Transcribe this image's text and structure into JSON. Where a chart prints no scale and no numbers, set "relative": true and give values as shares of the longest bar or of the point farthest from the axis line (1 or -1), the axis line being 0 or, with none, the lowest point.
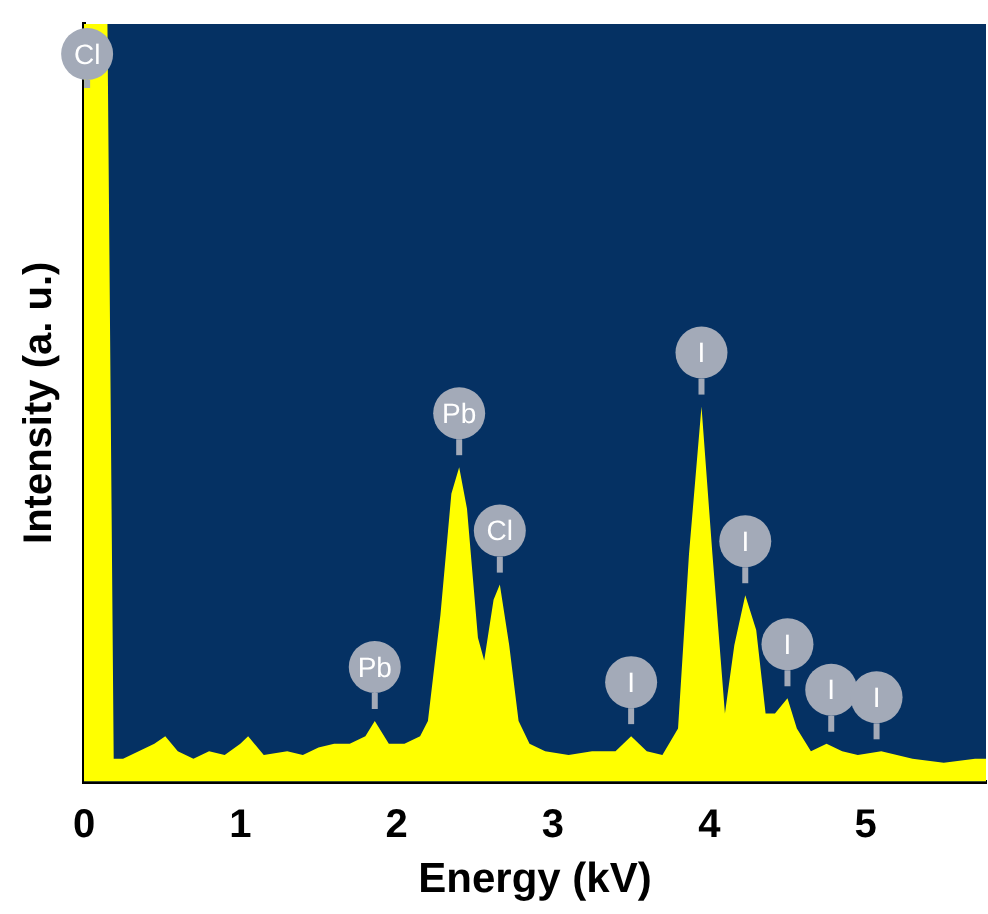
{
  "chart_data": {
    "type": "area",
    "relative": true,
    "xlabel": "Energy (kV)",
    "ylabel": "Intensity (a. u.)",
    "xlim": [
      0,
      5.77
    ],
    "xticks": [
      0,
      1,
      2,
      3,
      4,
      5
    ],
    "series": [
      {
        "color": "#ffff00",
        "x": [
          0,
          0.02,
          0.15,
          0.19,
          0.25,
          0.35,
          0.45,
          0.52,
          0.6,
          0.7,
          0.8,
          0.9,
          1.0,
          1.05,
          1.15,
          1.3,
          1.4,
          1.5,
          1.6,
          1.7,
          1.8,
          1.86,
          1.95,
          2.05,
          2.15,
          2.2,
          2.28,
          2.35,
          2.4,
          2.45,
          2.52,
          2.56,
          2.62,
          2.66,
          2.72,
          2.78,
          2.85,
          2.95,
          3.1,
          3.25,
          3.4,
          3.5,
          3.6,
          3.7,
          3.8,
          3.87,
          3.95,
          4.02,
          4.1,
          4.16,
          4.23,
          4.3,
          4.36,
          4.42,
          4.5,
          4.56,
          4.65,
          4.75,
          4.85,
          4.95,
          5.1,
          5.3,
          5.5,
          5.7,
          5.77
        ],
        "values": [
          1,
          1,
          1,
          0.03,
          0.03,
          0.04,
          0.05,
          0.06,
          0.04,
          0.03,
          0.04,
          0.035,
          0.05,
          0.06,
          0.035,
          0.04,
          0.035,
          0.045,
          0.05,
          0.05,
          0.06,
          0.08,
          0.05,
          0.05,
          0.06,
          0.08,
          0.22,
          0.38,
          0.415,
          0.36,
          0.19,
          0.16,
          0.24,
          0.26,
          0.18,
          0.08,
          0.05,
          0.04,
          0.035,
          0.04,
          0.04,
          0.06,
          0.04,
          0.035,
          0.07,
          0.3,
          0.495,
          0.3,
          0.09,
          0.18,
          0.246,
          0.2,
          0.09,
          0.09,
          0.11,
          0.07,
          0.04,
          0.05,
          0.04,
          0.035,
          0.04,
          0.03,
          0.025,
          0.03,
          0.03
        ]
      }
    ],
    "annotations": [
      {
        "text": "Cl",
        "x": 0.02,
        "y": 1
      },
      {
        "text": "Pb",
        "x": 1.86,
        "y": 0.08
      },
      {
        "text": "Pb",
        "x": 2.4,
        "y": 0.415
      },
      {
        "text": "Cl",
        "x": 2.66,
        "y": 0.26
      },
      {
        "text": "I",
        "x": 3.5,
        "y": 0.06
      },
      {
        "text": "I",
        "x": 3.95,
        "y": 0.495
      },
      {
        "text": "I",
        "x": 4.23,
        "y": 0.246
      },
      {
        "text": "I",
        "x": 4.5,
        "y": 0.11
      },
      {
        "text": "I",
        "x": 4.78,
        "y": 0.05
      },
      {
        "text": "I",
        "x": 5.07,
        "y": 0.04
      }
    ]
  }
}
